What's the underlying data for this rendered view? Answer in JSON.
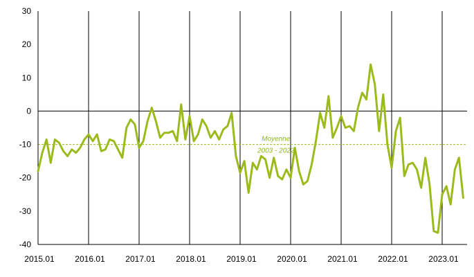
{
  "chart_data": {
    "type": "line",
    "xlabel": "",
    "ylabel": "",
    "x_tick_labels": [
      "2015.01",
      "2016.01",
      "2017.01",
      "2018.01",
      "2019.01",
      "2020.01",
      "2021.01",
      "2022.01",
      "2023.01"
    ],
    "y_ticks": [
      30,
      20,
      10,
      0,
      -10,
      -20,
      -30,
      -40
    ],
    "ylim": [
      -40,
      30
    ],
    "x_start": "2015.01",
    "x_end": "2023.06",
    "series": [
      {
        "color": "#9bbb1c",
        "values": [
          -18,
          -12.5,
          -8.5,
          -15.5,
          -8.5,
          -9.5,
          -12,
          -13.5,
          -11.5,
          -12.5,
          -11,
          -8.5,
          -7,
          -9,
          -7,
          -12,
          -11.5,
          -8.5,
          -9,
          -11.5,
          -14,
          -5,
          -2.5,
          -4,
          -11,
          -9,
          -3,
          1,
          -3,
          -8,
          -6.5,
          -6.5,
          -6,
          -9,
          2,
          -8.5,
          -1.5,
          -9,
          -7,
          -2.5,
          -4.5,
          -8,
          -6,
          -8.5,
          -5.5,
          -4.5,
          -0.5,
          -13.5,
          -18.5,
          -15,
          -24.5,
          -15.5,
          -17.5,
          -13.5,
          -14.5,
          -20,
          -14,
          -19.5,
          -20.5,
          -17.5,
          -20,
          -11,
          -18,
          -22,
          -21,
          -16,
          -9,
          -0.5,
          -5,
          4.5,
          -8,
          -5,
          -1.5,
          -5,
          -4.5,
          -6,
          1,
          5.5,
          3.5,
          14,
          8,
          -6,
          5,
          -10,
          -17,
          -6,
          -2,
          -19.5,
          -16,
          -15.5,
          -17.5,
          -23,
          -14,
          -22,
          -36,
          -36.5,
          -25,
          -22.5,
          -28,
          -17.5,
          -14,
          -26
        ]
      }
    ],
    "reference_line": {
      "y": -10,
      "label_line1": "Moyenne",
      "label_line2": "2003 - 2022",
      "color": "#9bbb1c"
    },
    "grid": "vertical at year starts",
    "legend": "none"
  }
}
